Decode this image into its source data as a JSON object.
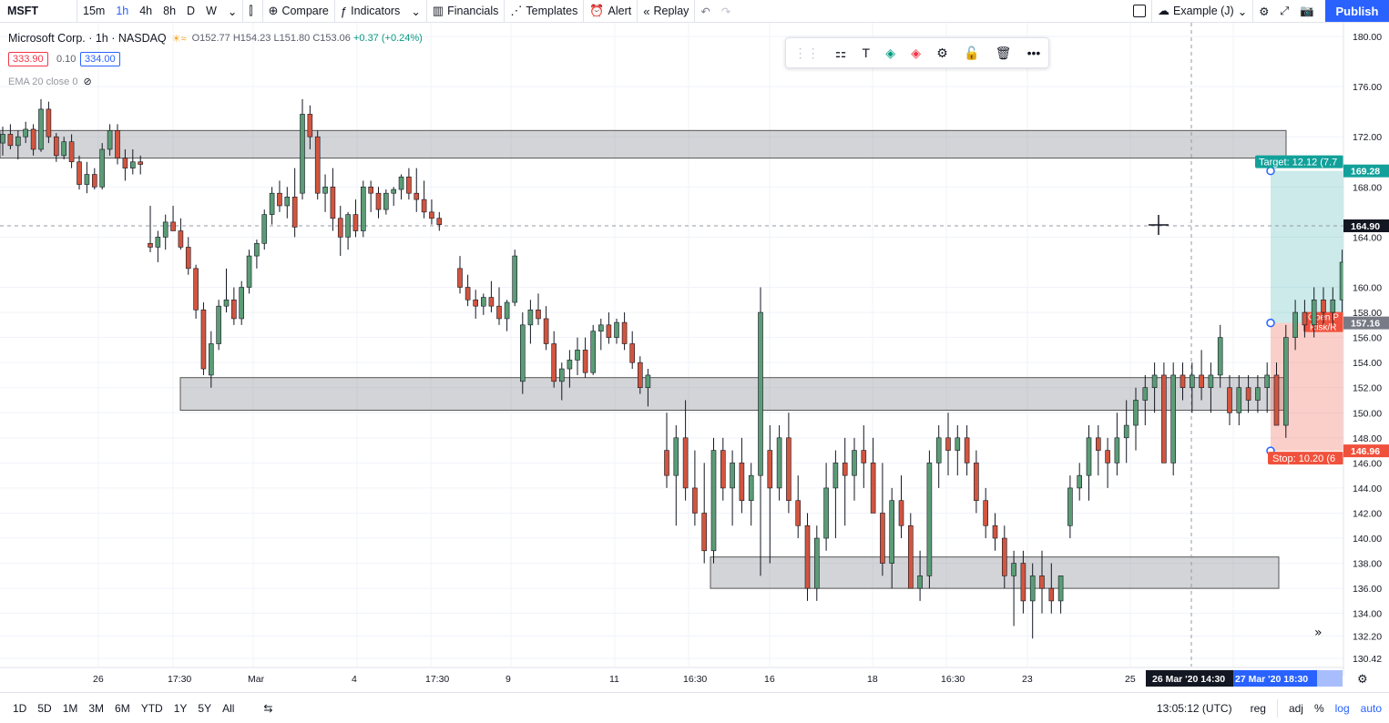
{
  "toolbar": {
    "symbol": "MSFT",
    "intervals": [
      "15m",
      "1h",
      "4h",
      "8h",
      "D",
      "W"
    ],
    "active_interval": "1h",
    "compare": "Compare",
    "indicators": "Indicators",
    "financials": "Financials",
    "templates": "Templates",
    "alert": "Alert",
    "replay": "Replay",
    "layout_name": "Example (J)",
    "publish": "Publish"
  },
  "legend": {
    "title": "Microsoft Corp. · 1h · NASDAQ",
    "open": "O152.77",
    "high": "H154.23",
    "low": "L151.80",
    "close": "C153.06",
    "change": "+0.37 (+0.24%)",
    "bid": "333.90",
    "spread": "0.10",
    "ask": "334.00",
    "ema": "EMA 20 close 0"
  },
  "bottom": {
    "ranges": [
      "1D",
      "5D",
      "1M",
      "3M",
      "6M",
      "YTD",
      "1Y",
      "5Y",
      "All"
    ],
    "time": "13:05:12 (UTC)",
    "reg": "reg",
    "adj": "adj",
    "pct": "%",
    "log": "log",
    "auto": "auto"
  },
  "colors": {
    "up": "#5b9c76",
    "down": "#d2553f",
    "accent": "#2962ff",
    "target": "#12a19a",
    "stop": "#f0513c"
  },
  "chart_data": {
    "type": "candlestick",
    "y_ticks": [
      130.42,
      132.2,
      134.0,
      136.0,
      138.0,
      140.0,
      142.0,
      144.0,
      146.0,
      148.0,
      150.0,
      152.0,
      154.0,
      156.0,
      158.0,
      160.0,
      164.0,
      168.0,
      172.0,
      176.0,
      180.0
    ],
    "x_ticks": [
      "26",
      "17:30",
      "Mar",
      "4",
      "17:30",
      "9",
      "11",
      "16:30",
      "16",
      "18",
      "16:30",
      "23",
      "25"
    ],
    "crosshair_labels": [
      "26 Mar '20",
      "14:30",
      "27 Mar '20",
      "18:30"
    ],
    "price_labels": {
      "target_price": 169.28,
      "crosshair_price": 164.9,
      "entry_price": 157.16,
      "stop_price": 146.96
    },
    "position": {
      "target_label": "Target: 12.12 (7.7",
      "stop_label": "Stop: 10.20 (6",
      "open_label": "Open P",
      "risk_label": "Risk/R"
    },
    "zones": [
      {
        "name": "resistance",
        "low": 170.3,
        "high": 172.5
      },
      {
        "name": "support-1",
        "low": 150.2,
        "high": 152.8
      },
      {
        "name": "support-2",
        "low": 136.0,
        "high": 138.5
      }
    ],
    "candles": [
      [
        171.5,
        172.8,
        170.5,
        172.2
      ],
      [
        172.2,
        173.0,
        171.0,
        171.3
      ],
      [
        171.3,
        172.5,
        170.2,
        172.0
      ],
      [
        172.0,
        173.2,
        171.5,
        172.6
      ],
      [
        172.6,
        173.0,
        170.5,
        171.0
      ],
      [
        171.0,
        175.0,
        170.8,
        174.2
      ],
      [
        174.2,
        174.8,
        171.5,
        172.0
      ],
      [
        172.0,
        172.3,
        170.0,
        170.5
      ],
      [
        170.5,
        172.0,
        170.2,
        171.6
      ],
      [
        171.6,
        172.2,
        169.5,
        170.0
      ],
      [
        170.0,
        170.5,
        167.8,
        168.2
      ],
      [
        168.2,
        170.0,
        167.5,
        169.0
      ],
      [
        169.0,
        169.5,
        167.8,
        168.0
      ],
      [
        168.0,
        171.5,
        167.8,
        171.0
      ],
      [
        171.0,
        173.0,
        170.5,
        172.5
      ],
      [
        172.5,
        173.0,
        169.8,
        170.3
      ],
      [
        170.3,
        171.0,
        168.5,
        169.5
      ],
      [
        169.5,
        171.0,
        169.0,
        170.0
      ],
      [
        170.0,
        170.5,
        169.0,
        169.8
      ],
      [
        163.5,
        166.5,
        162.8,
        163.2
      ],
      [
        163.2,
        164.5,
        162.0,
        164.0
      ],
      [
        164.0,
        165.8,
        163.0,
        165.2
      ],
      [
        165.2,
        166.5,
        164.5,
        164.5
      ],
      [
        164.5,
        165.5,
        163.0,
        163.2
      ],
      [
        163.2,
        164.0,
        161.0,
        161.5
      ],
      [
        161.5,
        161.8,
        157.5,
        158.2
      ],
      [
        158.2,
        158.8,
        153.0,
        153.5
      ],
      [
        153.0,
        156.5,
        152.0,
        155.5
      ],
      [
        155.5,
        159.0,
        155.0,
        158.5
      ],
      [
        158.5,
        161.5,
        158.0,
        159.0
      ],
      [
        159.0,
        160.0,
        157.0,
        157.5
      ],
      [
        157.5,
        160.5,
        157.0,
        160.0
      ],
      [
        160.0,
        163.0,
        159.5,
        162.5
      ],
      [
        162.5,
        163.8,
        161.5,
        163.5
      ],
      [
        163.5,
        166.2,
        163.0,
        165.8
      ],
      [
        165.8,
        168.0,
        165.0,
        167.5
      ],
      [
        167.5,
        168.5,
        166.0,
        166.5
      ],
      [
        166.5,
        168.0,
        165.5,
        167.2
      ],
      [
        167.2,
        169.5,
        164.0,
        164.8
      ],
      [
        167.5,
        175.0,
        167.0,
        173.8
      ],
      [
        173.8,
        174.5,
        171.0,
        172.0
      ],
      [
        172.0,
        172.5,
        167.0,
        167.5
      ],
      [
        167.5,
        169.0,
        166.0,
        168.0
      ],
      [
        168.0,
        169.5,
        164.5,
        165.5
      ],
      [
        165.5,
        166.5,
        162.5,
        164.0
      ],
      [
        164.0,
        166.0,
        163.0,
        165.8
      ],
      [
        165.8,
        167.0,
        164.0,
        164.5
      ],
      [
        164.5,
        168.5,
        164.0,
        168.0
      ],
      [
        168.0,
        168.5,
        166.0,
        167.5
      ],
      [
        167.5,
        168.0,
        165.5,
        166.2
      ],
      [
        166.2,
        167.8,
        165.8,
        167.5
      ],
      [
        167.5,
        168.0,
        166.5,
        167.8
      ],
      [
        167.8,
        169.0,
        167.0,
        168.8
      ],
      [
        168.8,
        169.5,
        167.0,
        167.5
      ],
      [
        167.5,
        169.5,
        166.0,
        167.0
      ],
      [
        167.0,
        168.5,
        165.5,
        166.0
      ],
      [
        166.0,
        167.0,
        165.0,
        165.5
      ],
      [
        165.5,
        166.0,
        164.5,
        165.0
      ],
      [
        161.5,
        162.5,
        159.5,
        160.0
      ],
      [
        160.0,
        161.0,
        158.5,
        159.0
      ],
      [
        159.0,
        159.8,
        157.5,
        158.5
      ],
      [
        158.5,
        159.5,
        157.8,
        159.2
      ],
      [
        159.2,
        160.5,
        158.0,
        158.5
      ],
      [
        158.5,
        160.0,
        157.0,
        157.5
      ],
      [
        157.5,
        159.0,
        156.5,
        158.8
      ],
      [
        158.8,
        163.0,
        158.5,
        162.5
      ],
      [
        152.5,
        158.0,
        151.5,
        157.0
      ],
      [
        157.0,
        159.0,
        155.5,
        158.2
      ],
      [
        158.2,
        159.5,
        157.0,
        157.5
      ],
      [
        157.5,
        158.5,
        155.0,
        155.5
      ],
      [
        155.5,
        156.5,
        152.0,
        152.5
      ],
      [
        152.5,
        154.0,
        151.0,
        153.5
      ],
      [
        153.5,
        155.0,
        152.0,
        154.2
      ],
      [
        154.2,
        156.0,
        153.0,
        155.0
      ],
      [
        155.0,
        156.0,
        152.8,
        153.2
      ],
      [
        153.2,
        157.0,
        153.0,
        156.5
      ],
      [
        156.5,
        157.5,
        155.0,
        157.0
      ],
      [
        157.0,
        158.0,
        155.5,
        156.0
      ],
      [
        156.0,
        157.5,
        155.5,
        157.2
      ],
      [
        157.2,
        158.0,
        155.0,
        155.5
      ],
      [
        155.5,
        156.5,
        153.5,
        154.0
      ],
      [
        154.0,
        154.5,
        151.5,
        152.0
      ],
      [
        152.0,
        153.5,
        150.5,
        153.0
      ]
    ]
  }
}
